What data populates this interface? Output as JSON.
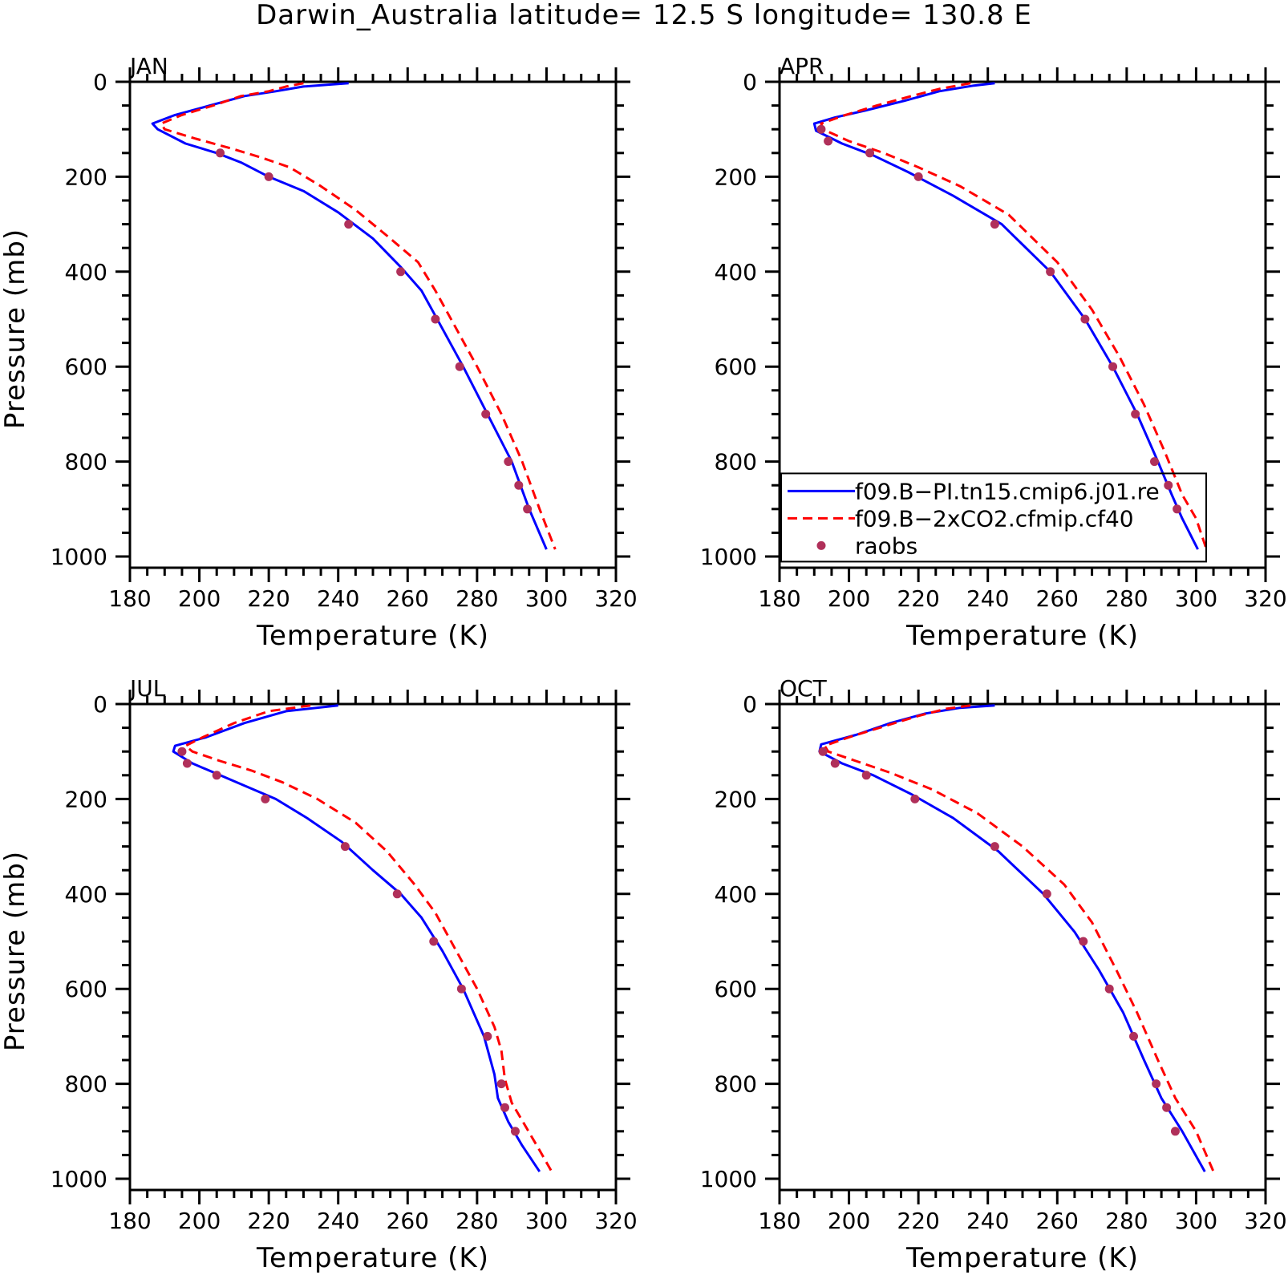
{
  "title": "Darwin_Australia  latitude= 12.5 S longitude= 130.8 E",
  "chart_data": [
    {
      "type": "line",
      "panel": "JAN",
      "xlabel": "Temperature (K)",
      "ylabel": "Pressure (mb)",
      "xlim": [
        180,
        320
      ],
      "ylim": [
        1000,
        0
      ],
      "xticks": [
        180,
        200,
        220,
        240,
        260,
        280,
        300,
        320
      ],
      "yticks": [
        0,
        200,
        400,
        600,
        800,
        1000
      ],
      "legend": false,
      "series": [
        {
          "name": "f09.B−PI.tn15.cmip6.j01.re",
          "style": "solid",
          "color": "#0000ff",
          "x": [
            243,
            230,
            222,
            213,
            203,
            193,
            186.5,
            188,
            196,
            205,
            212,
            220,
            230,
            240,
            250,
            258,
            264,
            270,
            276,
            283,
            290,
            295,
            300
          ],
          "y": [
            3,
            10,
            20,
            30,
            50,
            70,
            88,
            100,
            130,
            150,
            170,
            200,
            230,
            275,
            330,
            390,
            440,
            520,
            600,
            700,
            800,
            900,
            985
          ]
        },
        {
          "name": "f09.B−2xCO2.cfmip.cf40",
          "style": "dashed",
          "color": "#ff0000",
          "x": [
            230,
            225,
            220,
            212,
            204,
            195,
            189,
            190,
            199,
            209,
            218,
            226,
            235,
            245,
            255,
            263,
            268,
            274,
            280,
            287,
            293,
            298,
            302.5
          ],
          "y": [
            3,
            10,
            20,
            30,
            50,
            70,
            88,
            100,
            120,
            140,
            160,
            180,
            220,
            270,
            330,
            380,
            440,
            520,
            600,
            700,
            800,
            900,
            985
          ]
        },
        {
          "name": "raobs",
          "style": "markers",
          "color": "#b0305a",
          "x": [
            206,
            220,
            243,
            258,
            268,
            275,
            282.5,
            289,
            292,
            294.5
          ],
          "y": [
            150,
            200,
            300,
            400,
            500,
            600,
            700,
            800,
            850,
            900
          ]
        }
      ]
    },
    {
      "type": "line",
      "panel": "APR",
      "xlabel": "Temperature (K)",
      "ylabel": "",
      "xlim": [
        180,
        320
      ],
      "ylim": [
        1000,
        0
      ],
      "xticks": [
        180,
        200,
        220,
        240,
        260,
        280,
        300,
        320
      ],
      "yticks": [
        0,
        200,
        400,
        600,
        800,
        1000
      ],
      "legend": true,
      "series": [
        {
          "name": "f09.B−PI.tn15.cmip6.j01.re",
          "style": "solid",
          "color": "#0000ff",
          "x": [
            242,
            236,
            226,
            216,
            205,
            196,
            190,
            190.5,
            198,
            207,
            217,
            230,
            244,
            258,
            268,
            276,
            283,
            289,
            293,
            296,
            300.5
          ],
          "y": [
            3,
            8,
            20,
            40,
            60,
            75,
            88,
            103,
            130,
            155,
            190,
            240,
            300,
            400,
            500,
            600,
            700,
            800,
            870,
            920,
            985
          ]
        },
        {
          "name": "f09.B−2xCO2.cfmip.cf40",
          "style": "dashed",
          "color": "#ff0000",
          "x": [
            235,
            226,
            218,
            208,
            199,
            192,
            192.5,
            200,
            210,
            220,
            232,
            246,
            260,
            270,
            278,
            285,
            291,
            296,
            300,
            303
          ],
          "y": [
            3,
            15,
            30,
            50,
            70,
            88,
            100,
            125,
            150,
            180,
            220,
            280,
            380,
            480,
            580,
            680,
            780,
            870,
            920,
            985
          ]
        },
        {
          "name": "raobs",
          "style": "markers",
          "color": "#b0305a",
          "x": [
            192,
            194,
            206,
            220,
            242,
            258,
            268,
            276,
            282.5,
            288,
            292,
            294.5
          ],
          "y": [
            100,
            125,
            150,
            200,
            300,
            400,
            500,
            600,
            700,
            800,
            850,
            900
          ]
        }
      ]
    },
    {
      "type": "line",
      "panel": "JUL",
      "xlabel": "Temperature (K)",
      "ylabel": "Pressure (mb)",
      "xlim": [
        180,
        320
      ],
      "ylim": [
        1000,
        0
      ],
      "xticks": [
        180,
        200,
        220,
        240,
        260,
        280,
        300,
        320
      ],
      "yticks": [
        0,
        200,
        400,
        600,
        800,
        1000
      ],
      "legend": false,
      "series": [
        {
          "name": "f09.B−PI.tn15.cmip6.j01.re",
          "style": "solid",
          "color": "#0000ff",
          "x": [
            240,
            225,
            213,
            202,
            193,
            192.5,
            198,
            206,
            214,
            222,
            231,
            241,
            250,
            258,
            264,
            270,
            276,
            282,
            285,
            286,
            289,
            293,
            298
          ],
          "y": [
            3,
            15,
            40,
            70,
            88,
            100,
            125,
            150,
            175,
            200,
            240,
            290,
            350,
            400,
            450,
            520,
            600,
            700,
            780,
            830,
            880,
            930,
            985
          ]
        },
        {
          "name": "f09.B−2xCO2.cfmip.cf40",
          "style": "dashed",
          "color": "#ff0000",
          "x": [
            232,
            220,
            210,
            201,
            196,
            198,
            206,
            215,
            224,
            234,
            245,
            254,
            262,
            268,
            274,
            280,
            285,
            287,
            288,
            290,
            294,
            298,
            301.5
          ],
          "y": [
            3,
            15,
            40,
            70,
            88,
            100,
            120,
            140,
            165,
            200,
            250,
            310,
            380,
            440,
            520,
            600,
            680,
            730,
            790,
            840,
            890,
            940,
            985
          ]
        },
        {
          "name": "raobs",
          "style": "markers",
          "color": "#b0305a",
          "x": [
            195,
            196.5,
            205,
            219,
            242,
            257,
            267.5,
            275.5,
            283,
            287,
            288,
            291
          ],
          "y": [
            100,
            125,
            150,
            200,
            300,
            400,
            500,
            600,
            700,
            800,
            850,
            900
          ]
        }
      ]
    },
    {
      "type": "line",
      "panel": "OCT",
      "xlabel": "Temperature (K)",
      "ylabel": "",
      "xlim": [
        180,
        320
      ],
      "ylim": [
        1000,
        0
      ],
      "xticks": [
        180,
        200,
        220,
        240,
        260,
        280,
        300,
        320
      ],
      "yticks": [
        0,
        200,
        400,
        600,
        800,
        1000
      ],
      "legend": false,
      "series": [
        {
          "name": "f09.B−PI.tn15.cmip6.j01.re",
          "style": "solid",
          "color": "#0000ff",
          "x": [
            242,
            232,
            222,
            212,
            202,
            192,
            191.5,
            198,
            207,
            218,
            230,
            243,
            256,
            265,
            272,
            279,
            285,
            290,
            296,
            302.5
          ],
          "y": [
            3,
            8,
            20,
            40,
            65,
            85,
            100,
            125,
            150,
            190,
            240,
            310,
            400,
            480,
            560,
            650,
            750,
            830,
            900,
            985
          ]
        },
        {
          "name": "f09.B−2xCO2.cfmip.cf40",
          "style": "dashed",
          "color": "#ff0000",
          "x": [
            235,
            228,
            220,
            211,
            200,
            193,
            194,
            202,
            212,
            224,
            237,
            250,
            262,
            270,
            277,
            283,
            289,
            294,
            300,
            305
          ],
          "y": [
            3,
            10,
            25,
            45,
            70,
            88,
            100,
            120,
            145,
            180,
            230,
            300,
            380,
            460,
            560,
            650,
            750,
            830,
            900,
            985
          ]
        },
        {
          "name": "raobs",
          "style": "markers",
          "color": "#b0305a",
          "x": [
            192.5,
            196,
            205,
            219,
            242,
            257,
            267.5,
            275,
            282,
            288.5,
            291.5,
            294
          ],
          "y": [
            100,
            125,
            150,
            200,
            300,
            400,
            500,
            600,
            700,
            800,
            850,
            900
          ]
        }
      ]
    }
  ],
  "legend_entries": [
    {
      "label": "f09.B−PI.tn15.cmip6.j01.re",
      "style": "solid",
      "color": "#0000ff"
    },
    {
      "label": "f09.B−2xCO2.cfmip.cf40",
      "style": "dashed",
      "color": "#ff0000"
    },
    {
      "label": "raobs",
      "style": "marker",
      "color": "#b0305a"
    }
  ]
}
